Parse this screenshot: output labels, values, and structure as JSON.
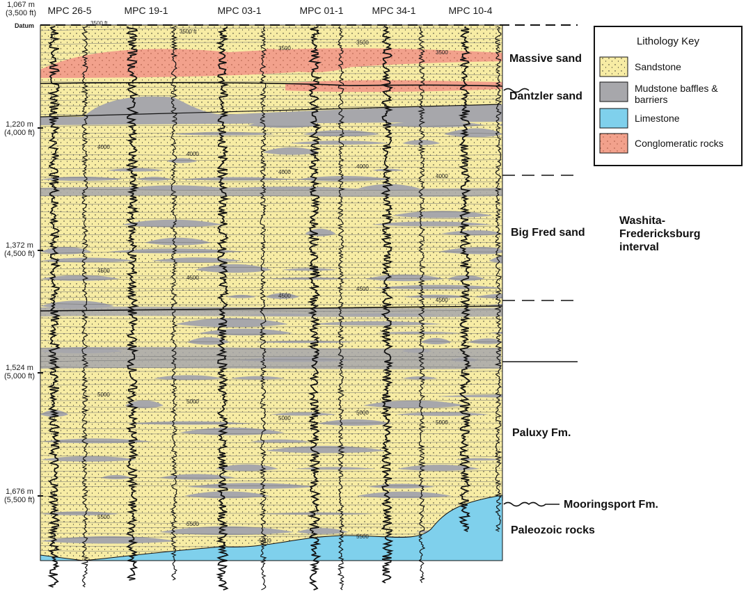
{
  "wells": [
    "MPC 26-5",
    "MPC 19-1",
    "MPC 03-1",
    "MPC 01-1",
    "MPC 34-1",
    "MPC 10-4"
  ],
  "depth_scale": [
    {
      "m": "1,067 m",
      "ft": "(3,500 ft)"
    },
    {
      "m": "1,220 m",
      "ft": "(4,000 ft)"
    },
    {
      "m": "1,372 m",
      "ft": "(4,500 ft)"
    },
    {
      "m": "1,524 m",
      "ft": "(5,000 ft)"
    },
    {
      "m": "1,676 m",
      "ft": "(5,500 ft)"
    }
  ],
  "datum_label": "Datum",
  "units": {
    "massive_sand": "Massive sand",
    "dantzler_sand": "Dantzler sand",
    "big_fred_sand": "Big Fred sand",
    "interval_line1": "Washita-",
    "interval_line2": "Fredericksburg",
    "interval_line3": "interval",
    "paluxy": "Paluxy Fm.",
    "mooringsport": "Mooringsport Fm.",
    "paleozoic": "Paleozoic rocks"
  },
  "log_depth_labels": [
    "3500 ft",
    "3500",
    "4000",
    "4500",
    "5000",
    "5500"
  ],
  "key": {
    "title": "Lithology Key",
    "items": [
      {
        "label": "Sandstone",
        "color": "#f7eca4"
      },
      {
        "label": "Mudstone baffles &",
        "label2": "barriers",
        "color": "#a7a7ab"
      },
      {
        "label": "Limestone",
        "color": "#7fd0ec"
      },
      {
        "label": "Conglomeratic rocks",
        "color": "#f2a18c"
      }
    ]
  },
  "colors": {
    "sandstone": "#f7eca4",
    "mudstone": "#a7a7ab",
    "limestone": "#7fd0ec",
    "conglomerate": "#f2a18c",
    "log": "#111111"
  }
}
